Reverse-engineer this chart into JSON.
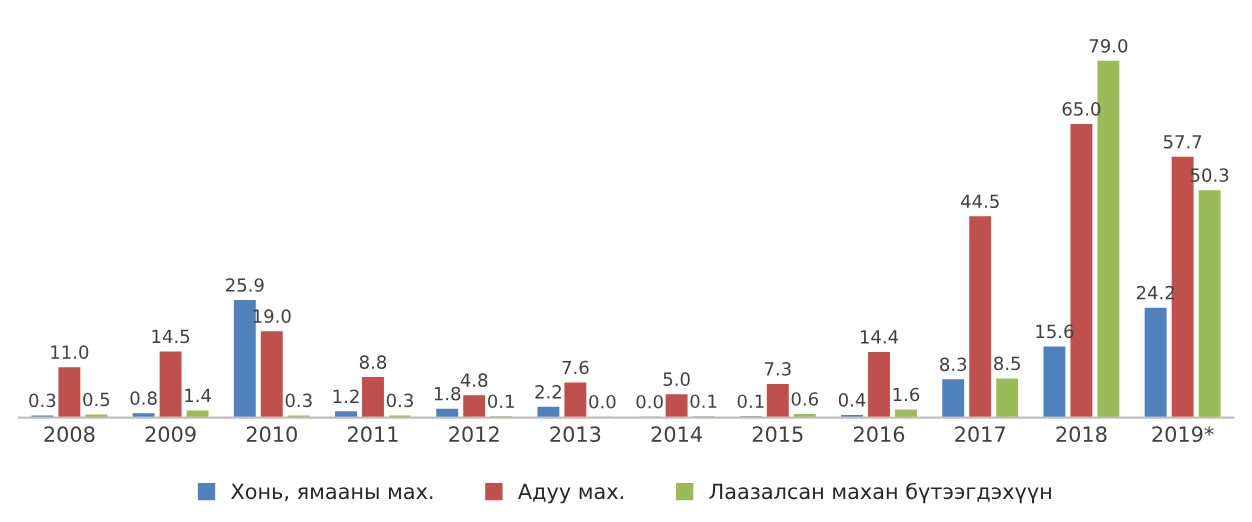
{
  "chart_data": {
    "type": "bar",
    "categories": [
      "2008",
      "2009",
      "2010",
      "2011",
      "2012",
      "2013",
      "2014",
      "2015",
      "2016",
      "2017",
      "2018",
      "2019*"
    ],
    "series": [
      {
        "name": "Хонь, ямааны мах.",
        "color": "#4f81bd",
        "values": [
          0.3,
          0.8,
          25.9,
          1.2,
          1.8,
          2.2,
          0.0,
          0.1,
          0.4,
          8.3,
          15.6,
          24.2
        ],
        "value_labels": [
          "0.3",
          "0.8",
          "25.9",
          "1.2",
          "1.8",
          "2.2",
          "0.0",
          "0.1",
          "0.4",
          "8.3",
          "15.6",
          "24.2"
        ]
      },
      {
        "name": "Адуу мах.",
        "color": "#c0504d",
        "values": [
          11.0,
          14.5,
          19.0,
          8.8,
          4.8,
          7.6,
          5.0,
          7.3,
          14.4,
          44.5,
          65.0,
          57.7
        ],
        "value_labels": [
          "11.0",
          "14.5",
          "19.0",
          "8.8",
          "4.8",
          "7.6",
          "5.0",
          "7.3",
          "14.4",
          "44.5",
          "65.0",
          "57.7"
        ]
      },
      {
        "name": "Лаазалсан махан бүтээгдэхүүн",
        "color": "#9bbb59",
        "values": [
          0.5,
          1.4,
          0.3,
          0.3,
          0.1,
          0.0,
          0.1,
          0.6,
          1.6,
          8.5,
          79.0,
          50.3
        ],
        "value_labels": [
          "0.5",
          "1.4",
          "0.3",
          "0.3",
          "0.1",
          "0.0",
          "0.1",
          "0.6",
          "1.6",
          "8.5",
          "79.0",
          "50.3"
        ]
      }
    ],
    "legend": "bottom"
  }
}
